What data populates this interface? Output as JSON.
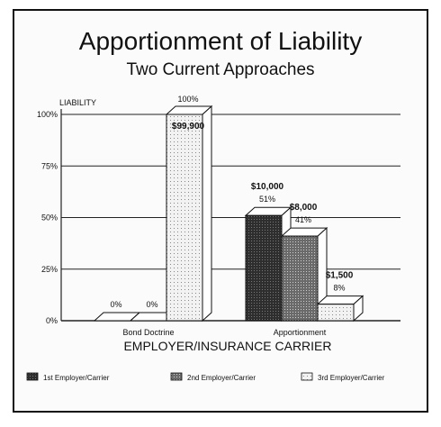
{
  "chart_data": {
    "type": "bar",
    "title": "Apportionment of Liability",
    "subtitle": "Two Current Approaches",
    "ylabel": "LIABILITY",
    "xlabel": "EMPLOYER/INSURANCE CARRIER",
    "ylim": [
      0,
      100
    ],
    "yticks": [
      "0%",
      "25%",
      "50%",
      "75%",
      "100%"
    ],
    "categories": [
      "Bond Doctrine",
      "Apportionment"
    ],
    "series": [
      {
        "name": "1st Employer/Carrier",
        "values": [
          0,
          51
        ],
        "amount_labels": [
          "",
          "$10,000"
        ],
        "percent_labels": [
          "0%",
          "51%"
        ],
        "color": "#3a3a3a"
      },
      {
        "name": "2nd Employer/Carrier",
        "values": [
          0,
          41
        ],
        "amount_labels": [
          "",
          "$8,000"
        ],
        "percent_labels": [
          "0%",
          "41%"
        ],
        "color": "#7a7a7a"
      },
      {
        "name": "3rd Employer/Carrier",
        "values": [
          100,
          8
        ],
        "amount_labels": [
          "$99,900",
          "$1,500"
        ],
        "percent_labels": [
          "100%",
          "8%"
        ],
        "color": "#d6d6d6"
      }
    ],
    "grid": true,
    "legend_position": "bottom"
  }
}
